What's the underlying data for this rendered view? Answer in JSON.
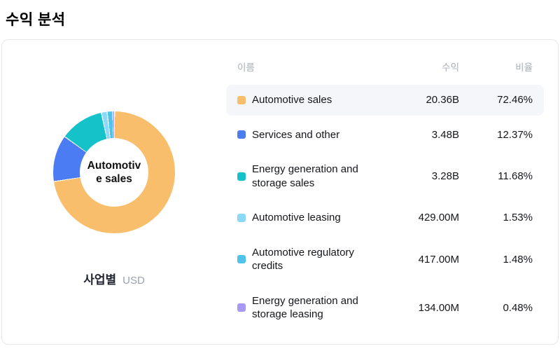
{
  "page": {
    "title": "수익 분석"
  },
  "chart": {
    "center_label": "Automotive sales",
    "footer_label": "사업별",
    "footer_unit": "USD"
  },
  "table": {
    "headers": {
      "name": "이름",
      "revenue": "수익",
      "ratio": "비율"
    },
    "rows": [
      {
        "name": "Automotive sales",
        "revenue": "20.36B",
        "ratio": "72.46%",
        "color": "#f9be6b",
        "highlighted": true
      },
      {
        "name": "Services and other",
        "revenue": "3.48B",
        "ratio": "12.37%",
        "color": "#4c7cf3",
        "highlighted": false
      },
      {
        "name": "Energy generation and storage sales",
        "revenue": "3.28B",
        "ratio": "11.68%",
        "color": "#16c2c9",
        "highlighted": false
      },
      {
        "name": "Automotive leasing",
        "revenue": "429.00M",
        "ratio": "1.53%",
        "color": "#8bd8f8",
        "highlighted": false
      },
      {
        "name": "Automotive regulatory credits",
        "revenue": "417.00M",
        "ratio": "1.48%",
        "color": "#4fc3ea",
        "highlighted": false
      },
      {
        "name": "Energy generation and storage leasing",
        "revenue": "134.00M",
        "ratio": "0.48%",
        "color": "#a79af7",
        "highlighted": false
      }
    ]
  },
  "chart_data": {
    "type": "pie",
    "title": "수익 분석",
    "subtitle": "사업별",
    "unit": "USD",
    "legend_position": "right-table",
    "donut": true,
    "categories": [
      "Automotive sales",
      "Services and other",
      "Energy generation and storage sales",
      "Automotive leasing",
      "Automotive regulatory credits",
      "Energy generation and storage leasing"
    ],
    "values_percent": [
      72.46,
      12.37,
      11.68,
      1.53,
      1.48,
      0.48
    ],
    "values_revenue": [
      "20.36B",
      "3.48B",
      "3.28B",
      "429.00M",
      "417.00M",
      "134.00M"
    ],
    "colors": [
      "#f9be6b",
      "#4c7cf3",
      "#16c2c9",
      "#8bd8f8",
      "#4fc3ea",
      "#a79af7"
    ],
    "center_label": "Automotive sales"
  }
}
